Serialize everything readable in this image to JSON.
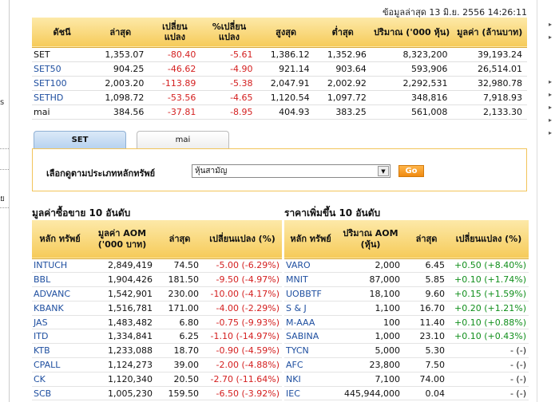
{
  "left_edge_marks": [
    "s",
    "ย"
  ],
  "updated_text": "ข้อมูลล่าสุด 13 มิ.ย. 2556 14:26:11",
  "index_table": {
    "headers": [
      "ดัชนี",
      "ล่าสุด",
      "เปลี่ยน แปลง",
      "%เปลี่ยน แปลง",
      "สูงสุด",
      "ต่ำสุด",
      "ปริมาณ ('000 หุ้น)",
      "มูลค่า (ล้านบาท)"
    ],
    "rows": [
      {
        "name": "SET",
        "last": "1,353.07",
        "chg": "-80.40",
        "pct": "-5.61",
        "high": "1,386.12",
        "low": "1,352.96",
        "vol": "8,323,200",
        "val": "39,193.24",
        "link": false
      },
      {
        "name": "SET50",
        "last": "904.25",
        "chg": "-46.62",
        "pct": "-4.90",
        "high": "921.14",
        "low": "903.64",
        "vol": "593,906",
        "val": "26,514.01",
        "link": true
      },
      {
        "name": "SET100",
        "last": "2,003.20",
        "chg": "-113.89",
        "pct": "-5.38",
        "high": "2,047.91",
        "low": "2,002.92",
        "vol": "2,292,531",
        "val": "32,980.78",
        "link": true
      },
      {
        "name": "SETHD",
        "last": "1,098.72",
        "chg": "-53.56",
        "pct": "-4.65",
        "high": "1,120.54",
        "low": "1,097.72",
        "vol": "348,816",
        "val": "7,918.93",
        "link": true
      },
      {
        "name": "mai",
        "last": "384.56",
        "chg": "-37.81",
        "pct": "-8.95",
        "high": "404.93",
        "low": "383.25",
        "vol": "561,008",
        "val": "2,133.30",
        "link": false
      }
    ]
  },
  "tabs": [
    {
      "label": "SET",
      "active": true
    },
    {
      "label": "mai",
      "active": false
    }
  ],
  "filter": {
    "label": "เลือกดูตามประเภทหลักทรัพย์",
    "selected": "หุ้นสามัญ",
    "go_label": "Go"
  },
  "top_value": {
    "title": "มูลค่าซื้อขาย 10 อันดับ",
    "headers": [
      "หลัก ทรัพย์",
      "มูลค่า AOM ('000 บาท)",
      "ล่าสุด",
      "เปลี่ยนแปลง (%)"
    ],
    "rows": [
      {
        "sym": "INTUCH",
        "amt": "2,849,419",
        "last": "74.50",
        "chg": "-5.00 (-6.29%)",
        "dir": "neg"
      },
      {
        "sym": "BBL",
        "amt": "1,904,426",
        "last": "181.50",
        "chg": "-9.50 (-4.97%)",
        "dir": "neg"
      },
      {
        "sym": "ADVANC",
        "amt": "1,542,901",
        "last": "230.00",
        "chg": "-10.00 (-4.17%)",
        "dir": "neg"
      },
      {
        "sym": "KBANK",
        "amt": "1,516,781",
        "last": "171.00",
        "chg": "-4.00 (-2.29%)",
        "dir": "neg"
      },
      {
        "sym": "JAS",
        "amt": "1,483,482",
        "last": "6.80",
        "chg": "-0.75 (-9.93%)",
        "dir": "neg"
      },
      {
        "sym": "ITD",
        "amt": "1,334,841",
        "last": "6.25",
        "chg": "-1.10 (-14.97%)",
        "dir": "neg"
      },
      {
        "sym": "KTB",
        "amt": "1,233,088",
        "last": "18.70",
        "chg": "-0.90 (-4.59%)",
        "dir": "neg"
      },
      {
        "sym": "CPALL",
        "amt": "1,124,273",
        "last": "39.00",
        "chg": "-2.00 (-4.88%)",
        "dir": "neg"
      },
      {
        "sym": "CK",
        "amt": "1,120,340",
        "last": "20.50",
        "chg": "-2.70 (-11.64%)",
        "dir": "neg"
      },
      {
        "sym": "SCB",
        "amt": "1,005,230",
        "last": "159.50",
        "chg": "-6.50 (-3.92%)",
        "dir": "neg"
      }
    ]
  },
  "top_gainers": {
    "title": "ราคาเพิ่มขึ้น 10 อันดับ",
    "headers": [
      "หลัก ทรัพย์",
      "ปริมาณ AOM (หุ้น)",
      "ล่าสุด",
      "เปลี่ยนแปลง (%)"
    ],
    "rows": [
      {
        "sym": "VARO",
        "amt": "2,000",
        "last": "6.45",
        "chg": "+0.50 (+8.40%)",
        "dir": "pos"
      },
      {
        "sym": "MNIT",
        "amt": "87,000",
        "last": "5.85",
        "chg": "+0.10 (+1.74%)",
        "dir": "pos"
      },
      {
        "sym": "UOBBTF",
        "amt": "18,100",
        "last": "9.60",
        "chg": "+0.15 (+1.59%)",
        "dir": "pos"
      },
      {
        "sym": "S & J",
        "amt": "1,100",
        "last": "16.70",
        "chg": "+0.20 (+1.21%)",
        "dir": "pos"
      },
      {
        "sym": "M-AAA",
        "amt": "100",
        "last": "11.40",
        "chg": "+0.10 (+0.88%)",
        "dir": "pos"
      },
      {
        "sym": "SABINA",
        "amt": "1,000",
        "last": "23.10",
        "chg": "+0.10 (+0.43%)",
        "dir": "pos"
      },
      {
        "sym": "TYCN",
        "amt": "5,000",
        "last": "5.30",
        "chg": "- (-)",
        "dir": "neu"
      },
      {
        "sym": "AFC",
        "amt": "23,800",
        "last": "7.50",
        "chg": "- (-)",
        "dir": "neu"
      },
      {
        "sym": "NKI",
        "amt": "7,100",
        "last": "74.00",
        "chg": "- (-)",
        "dir": "neu"
      },
      {
        "sym": "IEC",
        "amt": "445,944,000",
        "last": "0.04",
        "chg": "- (-)",
        "dir": "neu"
      }
    ]
  }
}
